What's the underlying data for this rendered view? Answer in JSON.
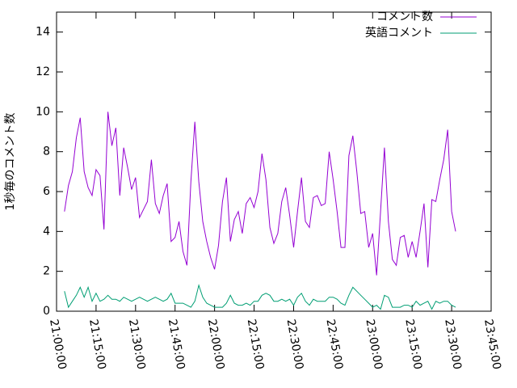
{
  "chart_data": {
    "type": "line",
    "y_label": "1秒毎のコメント数",
    "x": [
      "21:03:00",
      "21:04:30",
      "21:06:00",
      "21:07:30",
      "21:09:00",
      "21:10:30",
      "21:12:00",
      "21:13:30",
      "21:15:00",
      "21:16:30",
      "21:18:00",
      "21:19:30",
      "21:21:00",
      "21:22:30",
      "21:24:00",
      "21:25:30",
      "21:27:00",
      "21:28:30",
      "21:30:00",
      "21:31:30",
      "21:33:00",
      "21:34:30",
      "21:36:00",
      "21:37:30",
      "21:39:00",
      "21:40:30",
      "21:42:00",
      "21:43:30",
      "21:45:00",
      "21:46:30",
      "21:48:00",
      "21:49:30",
      "21:51:00",
      "21:52:30",
      "21:54:00",
      "21:55:30",
      "21:57:00",
      "21:58:30",
      "22:00:00",
      "22:01:30",
      "22:03:00",
      "22:04:30",
      "22:06:00",
      "22:07:30",
      "22:09:00",
      "22:10:30",
      "22:12:00",
      "22:13:30",
      "22:15:00",
      "22:16:30",
      "22:18:00",
      "22:19:30",
      "22:21:00",
      "22:22:30",
      "22:24:00",
      "22:25:30",
      "22:27:00",
      "22:28:30",
      "22:30:00",
      "22:31:30",
      "22:33:00",
      "22:34:30",
      "22:36:00",
      "22:37:30",
      "22:39:00",
      "22:40:30",
      "22:42:00",
      "22:43:30",
      "22:45:00",
      "22:46:30",
      "22:48:00",
      "22:49:30",
      "22:51:00",
      "22:52:30",
      "22:54:00",
      "22:55:30",
      "22:57:00",
      "22:58:30",
      "23:00:00",
      "23:01:30",
      "23:03:00",
      "23:04:30",
      "23:06:00",
      "23:07:30",
      "23:09:00",
      "23:10:30",
      "23:12:00",
      "23:13:30",
      "23:15:00",
      "23:16:30",
      "23:18:00",
      "23:19:30",
      "23:21:00",
      "23:22:30",
      "23:24:00",
      "23:25:30",
      "23:27:00",
      "23:28:30",
      "23:30:00",
      "23:31:30"
    ],
    "series": [
      {
        "name": "コメント数",
        "color": "#9400d3",
        "values": [
          5.0,
          6.3,
          7.0,
          8.7,
          9.7,
          7.0,
          6.2,
          5.8,
          7.1,
          6.8,
          4.1,
          10.0,
          8.3,
          9.2,
          5.8,
          8.2,
          7.2,
          6.1,
          6.7,
          4.7,
          5.1,
          5.5,
          7.6,
          5.4,
          4.9,
          5.8,
          6.4,
          3.5,
          3.7,
          4.5,
          3.0,
          2.3,
          6.5,
          9.5,
          6.5,
          4.5,
          3.5,
          2.7,
          2.1,
          3.3,
          5.5,
          6.7,
          3.5,
          4.6,
          5.0,
          3.9,
          5.4,
          5.7,
          5.2,
          6.0,
          7.9,
          6.6,
          4.2,
          3.4,
          3.9,
          5.5,
          6.2,
          4.8,
          3.2,
          5.0,
          6.7,
          4.5,
          4.2,
          5.7,
          5.8,
          5.3,
          5.4,
          8.0,
          6.6,
          5.0,
          3.2,
          3.2,
          7.8,
          8.8,
          7.0,
          4.9,
          5.0,
          3.2,
          3.9,
          1.8,
          5.0,
          8.2,
          4.5,
          2.6,
          2.3,
          3.7,
          3.8,
          2.7,
          3.5,
          2.7,
          4.0,
          5.4,
          2.2,
          5.6,
          5.5,
          6.6,
          7.6,
          9.1,
          5.0,
          4.0
        ]
      },
      {
        "name": "英語コメント",
        "color": "#009e73",
        "values": [
          1.0,
          0.2,
          0.5,
          0.8,
          1.2,
          0.7,
          1.2,
          0.5,
          0.9,
          0.5,
          0.6,
          0.8,
          0.6,
          0.6,
          0.5,
          0.7,
          0.6,
          0.5,
          0.6,
          0.7,
          0.6,
          0.5,
          0.6,
          0.7,
          0.6,
          0.5,
          0.6,
          0.9,
          0.4,
          0.4,
          0.4,
          0.3,
          0.2,
          0.5,
          1.3,
          0.7,
          0.4,
          0.3,
          0.2,
          0.2,
          0.2,
          0.4,
          0.8,
          0.4,
          0.3,
          0.3,
          0.4,
          0.3,
          0.5,
          0.5,
          0.8,
          0.9,
          0.8,
          0.5,
          0.5,
          0.6,
          0.5,
          0.6,
          0.3,
          0.7,
          0.9,
          0.5,
          0.3,
          0.6,
          0.5,
          0.5,
          0.5,
          0.7,
          0.7,
          0.6,
          0.4,
          0.3,
          0.8,
          1.2,
          1.0,
          0.8,
          0.6,
          0.4,
          0.2,
          0.3,
          0.1,
          0.8,
          0.7,
          0.2,
          0.2,
          0.2,
          0.3,
          0.3,
          0.2,
          0.5,
          0.3,
          0.4,
          0.5,
          0.1,
          0.5,
          0.4,
          0.5,
          0.5,
          0.3,
          0.2
        ]
      }
    ],
    "xlim": [
      "21:00:00",
      "23:45:00"
    ],
    "xticks": [
      "21:00:00",
      "21:15:00",
      "21:30:00",
      "21:45:00",
      "22:00:00",
      "22:15:00",
      "22:30:00",
      "22:45:00",
      "23:00:00",
      "23:15:00",
      "23:30:00",
      "23:45:00"
    ],
    "ylim": [
      0,
      15
    ],
    "yticks": [
      0,
      2,
      4,
      6,
      8,
      10,
      12,
      14
    ],
    "legend": "top-right"
  }
}
